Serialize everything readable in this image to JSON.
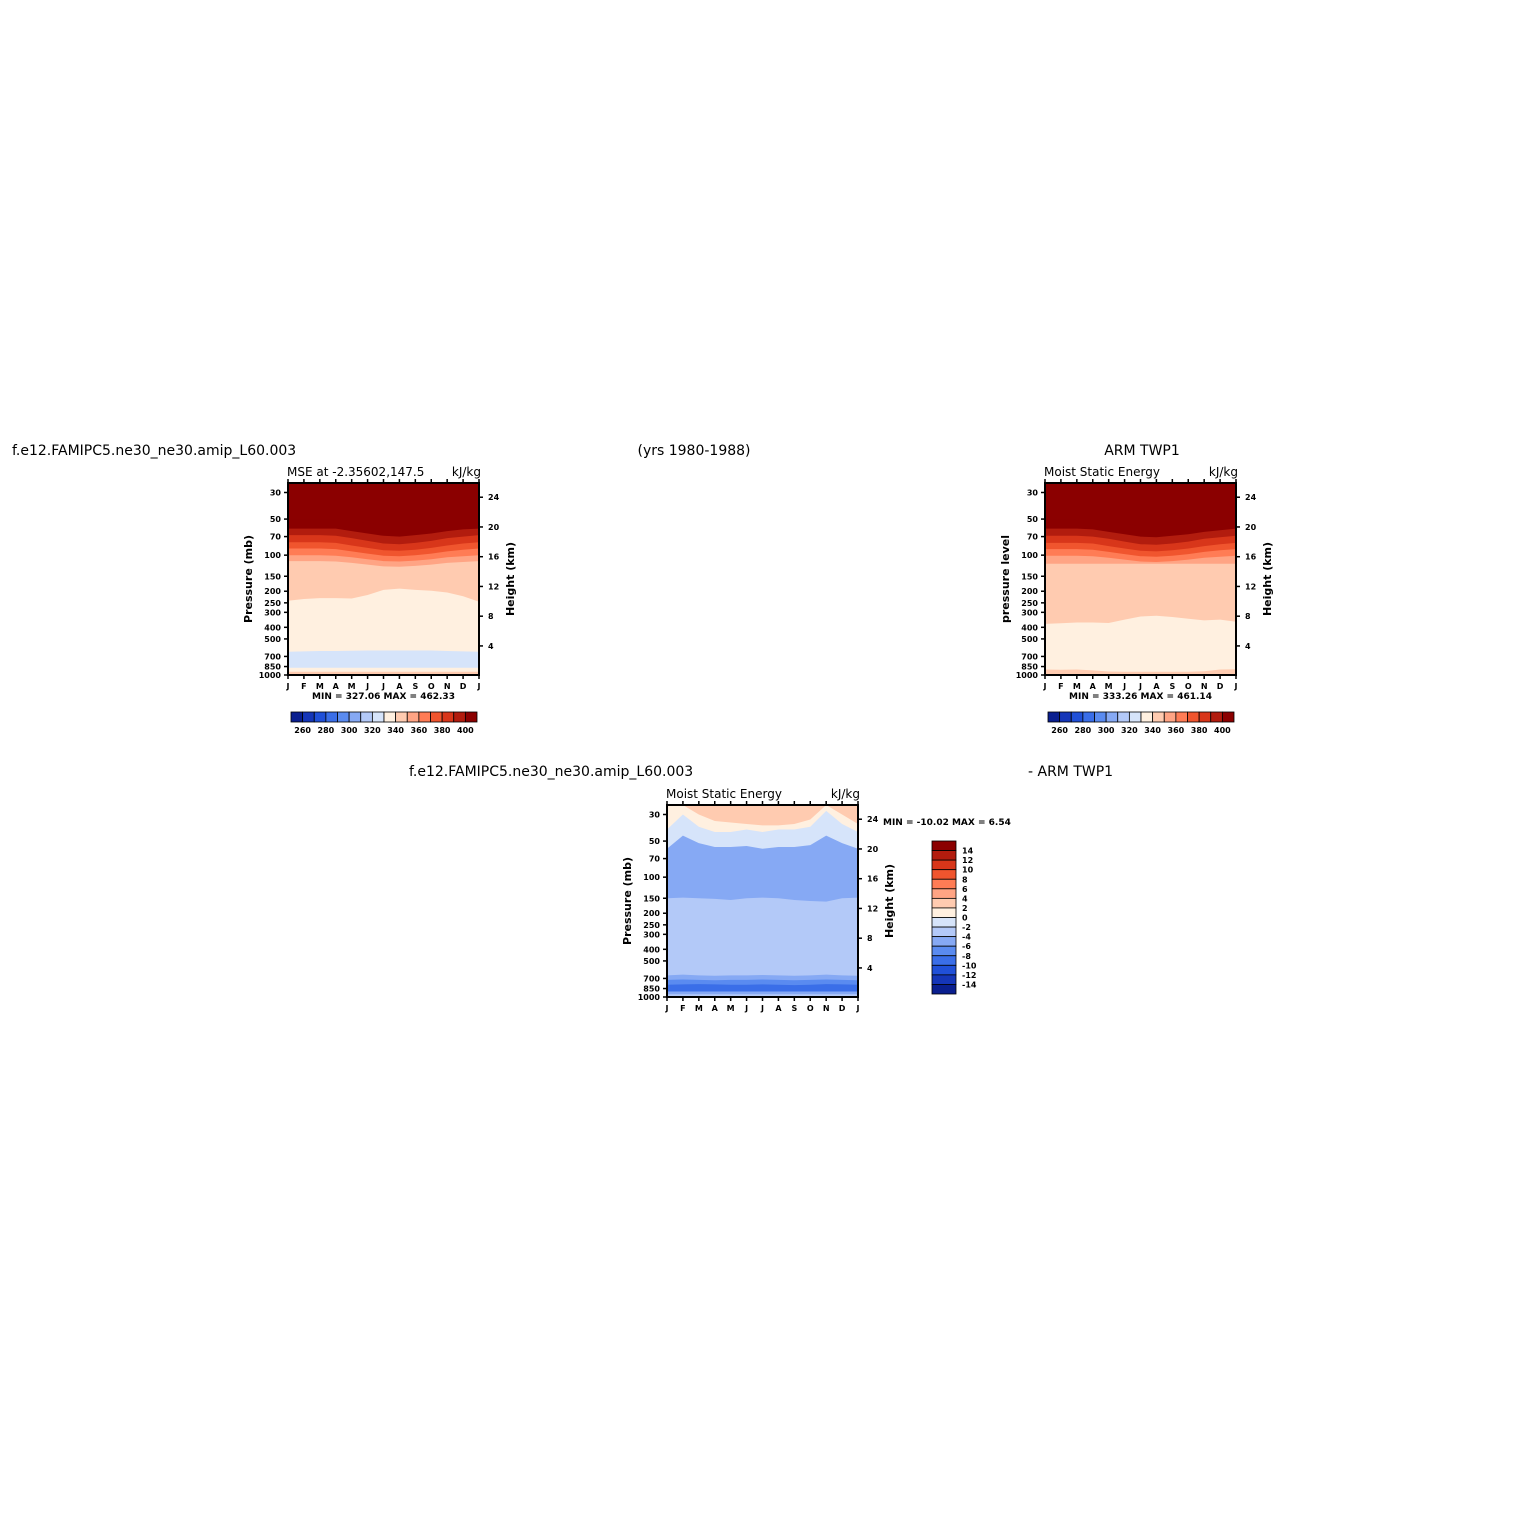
{
  "header": {
    "left_title": "f.e12.FAMIPC5.ne30_ne30.amip_L60.003",
    "center_title": "(yrs 1980-1988)",
    "right_title": "ARM TWP1",
    "diff_left_title": "f.e12.FAMIPC5.ne30_ne30.amip_L60.003",
    "diff_right_title": "- ARM TWP1"
  },
  "chart_data": [
    {
      "id": "model",
      "type": "heatmap",
      "title": "MSE at -2.35602,147.5",
      "units": "kJ/kg",
      "ylabel": "Pressure (mb)",
      "y2label": "Height (km)",
      "x_ticks": [
        "J",
        "F",
        "M",
        "A",
        "M",
        "J",
        "J",
        "A",
        "S",
        "O",
        "N",
        "D",
        "J"
      ],
      "y_ticks": [
        "30",
        "50",
        "70",
        "100",
        "150",
        "200",
        "250",
        "300",
        "400",
        "500",
        "700",
        "850",
        "1000"
      ],
      "y_scale": "log, reversed",
      "y2_ticks": [
        "24",
        "20",
        "16",
        "12",
        "8",
        "4"
      ],
      "minmax": "MIN = 327.06 MAX = 462.33",
      "colorbar": {
        "levels": [
          250,
          260,
          270,
          280,
          290,
          300,
          310,
          320,
          330,
          340,
          350,
          360,
          370,
          380,
          390,
          400,
          410
        ],
        "labels": [
          "260",
          "280",
          "300",
          "320",
          "340",
          "360",
          "380",
          "400"
        ],
        "colors": [
          "#0a1f8f",
          "#1536b8",
          "#2050d8",
          "#3a6ee8",
          "#5a8bf0",
          "#86a9f4",
          "#b3c9f8",
          "#d6e4fa",
          "#fff0e0",
          "#ffcbb0",
          "#ffa484",
          "#ff7c55",
          "#f0552e",
          "#d8361a",
          "#b21c0e",
          "#8b0000"
        ]
      },
      "bands": [
        {
          "level": 400,
          "upper": [
            50,
            50,
            50,
            50,
            52,
            54,
            56,
            56,
            55,
            54,
            52,
            51,
            50
          ],
          "color": "#8b0000"
        },
        {
          "level": 390,
          "upper": [
            60,
            60,
            60,
            60,
            63,
            66,
            69,
            70,
            68,
            66,
            63,
            61,
            60
          ],
          "color": "#b21c0e"
        },
        {
          "level": 380,
          "upper": [
            68,
            68,
            68,
            69,
            72,
            76,
            80,
            81,
            79,
            76,
            72,
            70,
            68
          ],
          "color": "#d8361a"
        },
        {
          "level": 370,
          "upper": [
            78,
            78,
            78,
            79,
            83,
            87,
            91,
            92,
            90,
            87,
            83,
            80,
            78
          ],
          "color": "#f0552e"
        },
        {
          "level": 360,
          "upper": [
            88,
            88,
            88,
            89,
            93,
            97,
            101,
            102,
            100,
            97,
            93,
            90,
            88
          ],
          "color": "#ff7c55"
        },
        {
          "level": 350,
          "upper": [
            100,
            100,
            100,
            101,
            104,
            108,
            112,
            113,
            111,
            108,
            104,
            102,
            100
          ],
          "color": "#ffa484"
        },
        {
          "level": 340,
          "upper": [
            112,
            112,
            112,
            113,
            116,
            120,
            124,
            125,
            123,
            120,
            116,
            114,
            112
          ],
          "color": "#ffcbb0"
        },
        {
          "level": 330,
          "upper": [
            240,
            232,
            228,
            228,
            230,
            215,
            195,
            190,
            195,
            198,
            205,
            220,
            245
          ],
          "color": "#fff0e0"
        },
        {
          "level": 320,
          "upper": [
            640,
            635,
            630,
            630,
            628,
            625,
            625,
            625,
            625,
            625,
            630,
            635,
            640
          ],
          "color": "#d6e4fa"
        },
        {
          "level": 330,
          "upper": [
            870,
            870,
            870,
            870,
            870,
            870,
            870,
            870,
            870,
            870,
            870,
            870,
            870
          ],
          "color": "#fff0e0"
        },
        {
          "level": 340,
          "upper": [
            940,
            940,
            940,
            940,
            940,
            940,
            940,
            940,
            940,
            940,
            940,
            940,
            940
          ],
          "color": "#ffcbb0"
        }
      ]
    },
    {
      "id": "obs",
      "type": "heatmap",
      "title": "Moist Static Energy",
      "units": "kJ/kg",
      "ylabel": "pressure level",
      "y2label": "Height (km)",
      "x_ticks": [
        "J",
        "F",
        "M",
        "A",
        "M",
        "J",
        "J",
        "A",
        "S",
        "O",
        "N",
        "D",
        "J"
      ],
      "y_ticks": [
        "30",
        "50",
        "70",
        "100",
        "150",
        "200",
        "250",
        "300",
        "400",
        "500",
        "700",
        "850",
        "1000"
      ],
      "y_scale": "log, reversed",
      "y2_ticks": [
        "24",
        "20",
        "16",
        "12",
        "8",
        "4"
      ],
      "minmax": "MIN = 333.26 MAX = 461.14",
      "colorbar": {
        "levels": [
          250,
          260,
          270,
          280,
          290,
          300,
          310,
          320,
          330,
          340,
          350,
          360,
          370,
          380,
          390,
          400,
          410
        ],
        "labels": [
          "260",
          "280",
          "300",
          "320",
          "340",
          "360",
          "380",
          "400"
        ],
        "colors": [
          "#0a1f8f",
          "#1536b8",
          "#2050d8",
          "#3a6ee8",
          "#5a8bf0",
          "#86a9f4",
          "#b3c9f8",
          "#d6e4fa",
          "#fff0e0",
          "#ffcbb0",
          "#ffa484",
          "#ff7c55",
          "#f0552e",
          "#d8361a",
          "#b21c0e",
          "#8b0000"
        ]
      },
      "bands": [
        {
          "level": 400,
          "upper": [
            50,
            50,
            50,
            51,
            53,
            55,
            57,
            57,
            56,
            55,
            53,
            51,
            50
          ],
          "color": "#8b0000"
        },
        {
          "level": 390,
          "upper": [
            60,
            60,
            60,
            61,
            64,
            67,
            70,
            71,
            69,
            67,
            64,
            62,
            60
          ],
          "color": "#b21c0e"
        },
        {
          "level": 380,
          "upper": [
            69,
            69,
            69,
            70,
            73,
            77,
            81,
            82,
            80,
            77,
            73,
            71,
            69
          ],
          "color": "#d8361a"
        },
        {
          "level": 370,
          "upper": [
            79,
            79,
            79,
            80,
            84,
            88,
            92,
            93,
            91,
            88,
            84,
            81,
            79
          ],
          "color": "#f0552e"
        },
        {
          "level": 360,
          "upper": [
            89,
            89,
            89,
            90,
            94,
            98,
            102,
            103,
            101,
            98,
            94,
            91,
            89
          ],
          "color": "#ff7c55"
        },
        {
          "level": 350,
          "upper": [
            101,
            101,
            101,
            102,
            105,
            109,
            113,
            114,
            112,
            109,
            105,
            103,
            101
          ],
          "color": "#ffa484"
        },
        {
          "level": 340,
          "upper": [
            118,
            118,
            118,
            118,
            118,
            118,
            118,
            118,
            118,
            118,
            118,
            118,
            118
          ],
          "color": "#ffcbb0"
        },
        {
          "level": 330,
          "upper": [
            375,
            370,
            365,
            365,
            368,
            345,
            325,
            320,
            328,
            340,
            350,
            345,
            360
          ],
          "color": "#fff0e0"
        },
        {
          "level": 340,
          "upper": [
            900,
            905,
            900,
            915,
            935,
            940,
            940,
            940,
            940,
            940,
            930,
            900,
            895
          ],
          "color": "#ffcbb0"
        }
      ]
    },
    {
      "id": "diff",
      "type": "heatmap",
      "title": "Moist Static Energy",
      "units": "kJ/kg",
      "ylabel": "Pressure (mb)",
      "y2label": "Height (km)",
      "x_ticks": [
        "J",
        "F",
        "M",
        "A",
        "M",
        "J",
        "J",
        "A",
        "S",
        "O",
        "N",
        "D",
        "J"
      ],
      "y_ticks": [
        "30",
        "50",
        "70",
        "100",
        "150",
        "200",
        "250",
        "300",
        "400",
        "500",
        "700",
        "850",
        "1000"
      ],
      "y_scale": "log, reversed",
      "y2_ticks": [
        "24",
        "20",
        "16",
        "12",
        "8",
        "4"
      ],
      "minmax": "MIN = -10.02 MAX =   6.54",
      "colorbar": {
        "levels": [
          -16,
          -14,
          -12,
          -10,
          -8,
          -6,
          -4,
          -2,
          0,
          2,
          4,
          6,
          8,
          10,
          12,
          14,
          16
        ],
        "labels": [
          "14",
          "12",
          "10",
          "8",
          "6",
          "4",
          "2",
          "0",
          "-2",
          "-4",
          "-6",
          "-8",
          "-10",
          "-12",
          "-14"
        ],
        "colors": [
          "#8b0000",
          "#b21c0e",
          "#d8361a",
          "#f0552e",
          "#ff7c55",
          "#ffa484",
          "#ffcbb0",
          "#fff0e0",
          "#d6e4fa",
          "#b3c9f8",
          "#86a9f4",
          "#5a8bf0",
          "#3a6ee8",
          "#2050d8",
          "#1536b8",
          "#0a1f8f"
        ]
      },
      "bands": [
        {
          "level": 2,
          "upper": [
            25,
            25,
            25,
            25,
            25,
            25,
            25,
            25,
            25,
            25,
            25,
            25,
            25
          ],
          "color": "#ffcbb0"
        },
        {
          "level": 0,
          "upper": [
            25,
            25,
            30,
            34,
            35,
            36,
            37,
            37,
            36,
            33,
            25,
            30,
            36
          ],
          "color": "#fff0e0"
        },
        {
          "level": -2,
          "upper": [
            40,
            30,
            38,
            42,
            42,
            40,
            42,
            40,
            40,
            38,
            28,
            36,
            42
          ],
          "color": "#d6e4fa"
        },
        {
          "level": -4,
          "upper": [
            58,
            45,
            52,
            56,
            56,
            55,
            58,
            56,
            56,
            54,
            45,
            52,
            58
          ],
          "color": "#86a9f4"
        },
        {
          "level": -2,
          "upper": [
            150,
            148,
            150,
            152,
            155,
            150,
            148,
            150,
            155,
            158,
            160,
            150,
            148
          ],
          "color": "#b3c9f8"
        },
        {
          "level": -4,
          "upper": [
            660,
            650,
            660,
            665,
            660,
            660,
            655,
            660,
            665,
            660,
            650,
            660,
            665
          ],
          "color": "#86a9f4"
        },
        {
          "level": -6,
          "upper": [
            720,
            715,
            720,
            725,
            720,
            720,
            715,
            720,
            725,
            720,
            715,
            720,
            725
          ],
          "color": "#5a8bf0"
        },
        {
          "level": -8,
          "upper": [
            790,
            785,
            780,
            785,
            790,
            790,
            785,
            790,
            795,
            790,
            780,
            785,
            790
          ],
          "color": "#3a6ee8"
        },
        {
          "level": -4,
          "upper": [
            900,
            900,
            900,
            900,
            900,
            900,
            900,
            900,
            900,
            900,
            900,
            900,
            900
          ],
          "color": "#86a9f4"
        },
        {
          "level": -2,
          "upper": [
            950,
            950,
            950,
            950,
            950,
            950,
            950,
            950,
            950,
            950,
            950,
            950,
            950
          ],
          "color": "#b3c9f8"
        }
      ]
    }
  ]
}
